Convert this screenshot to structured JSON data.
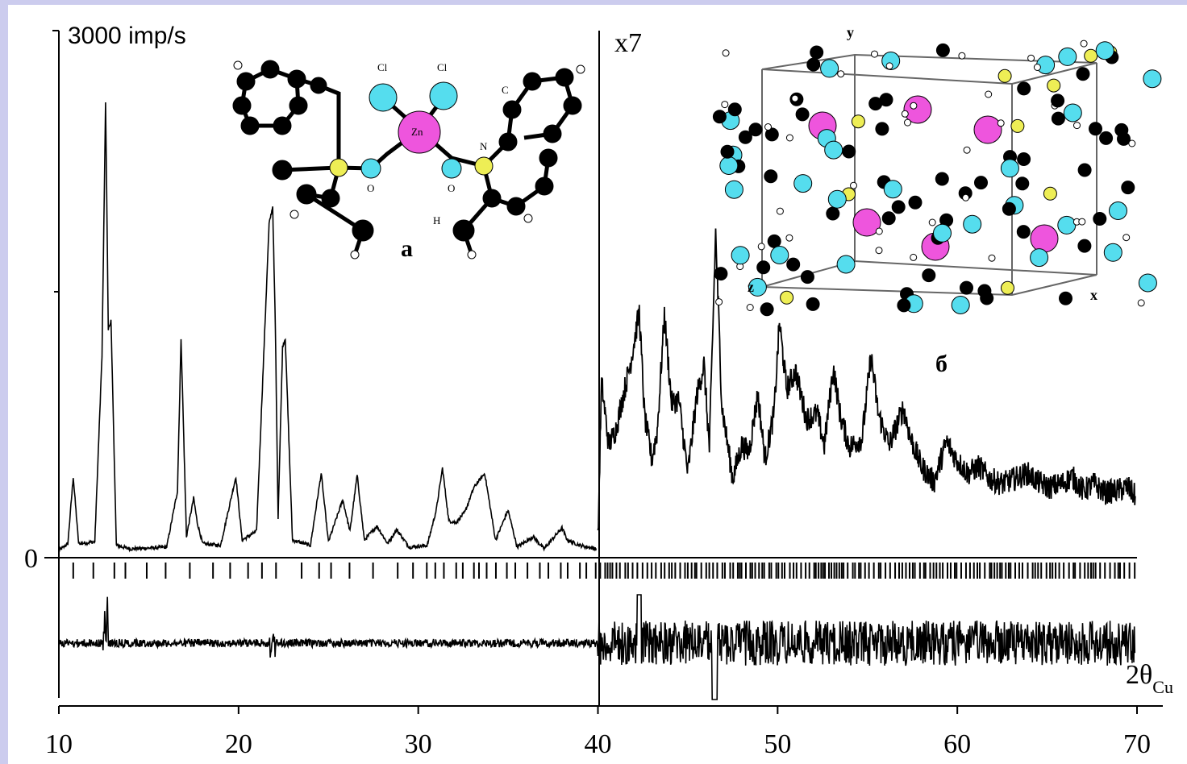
{
  "chart_data": {
    "type": "line",
    "title": "",
    "y_top_label": "3000 imp/s",
    "y_zero_label": "0",
    "scale_note": "x7",
    "scale_break_x": 40,
    "x_axis_label": "2θ",
    "x_axis_label_sub": "Cu",
    "x_ticks": [
      10,
      20,
      30,
      40,
      50,
      60,
      70
    ],
    "xlim": [
      10,
      70
    ],
    "ylim": [
      0,
      3000
    ],
    "series": [
      {
        "role": "observed",
        "x": [
          10.0,
          10.5,
          10.8,
          11.1,
          12.0,
          12.4,
          12.6,
          12.75,
          12.9,
          13.2,
          14.0,
          16.0,
          16.6,
          16.8,
          17.1,
          17.5,
          17.7,
          18.0,
          19.0,
          19.85,
          20.2,
          21.0,
          21.7,
          21.9,
          22.05,
          22.2,
          22.45,
          22.6,
          23.0,
          24.0,
          24.6,
          25.0,
          25.8,
          26.2,
          26.6,
          27.0,
          27.7,
          28.3,
          28.8,
          29.5,
          30.5,
          31.0,
          31.35,
          31.7,
          32.1,
          32.6,
          33.1,
          33.7,
          34.3,
          35.0,
          35.5,
          36.4,
          37.0,
          38.0,
          38.3,
          39.0,
          39.9
        ],
        "y": [
          40,
          80,
          460,
          80,
          90,
          1150,
          2600,
          1300,
          1350,
          70,
          50,
          60,
          380,
          1250,
          120,
          340,
          200,
          80,
          70,
          460,
          100,
          150,
          1900,
          2000,
          1300,
          230,
          1200,
          1250,
          100,
          70,
          480,
          90,
          330,
          150,
          470,
          100,
          180,
          80,
          160,
          60,
          70,
          270,
          510,
          210,
          200,
          260,
          400,
          480,
          100,
          270,
          60,
          120,
          50,
          170,
          100,
          70,
          50
        ]
      },
      {
        "role": "observed_scaled_x7",
        "x": [
          40.0,
          40.2,
          40.6,
          41.0,
          41.4,
          41.8,
          42.3,
          42.6,
          43.0,
          43.3,
          43.7,
          44.1,
          44.5,
          45.0,
          45.5,
          45.9,
          46.2,
          46.55,
          46.9,
          47.5,
          48.0,
          48.4,
          48.9,
          49.3,
          49.8,
          50.1,
          50.5,
          51.0,
          51.6,
          52.2,
          52.6,
          53.1,
          53.5,
          54.0,
          54.7,
          55.2,
          55.6,
          56.2,
          57.0,
          57.4,
          58.0,
          58.7,
          59.4,
          60.0,
          60.6,
          61.2,
          61.8,
          62.5,
          63.2,
          63.9,
          64.5,
          65.1,
          65.8,
          66.4,
          67.0,
          67.6,
          68.2,
          68.8,
          69.5,
          69.9
        ],
        "y": [
          90,
          1000,
          640,
          730,
          920,
          1100,
          1400,
          800,
          560,
          720,
          1380,
          880,
          900,
          480,
          920,
          1100,
          620,
          1850,
          860,
          450,
          640,
          600,
          930,
          560,
          820,
          1340,
          960,
          1060,
          790,
          820,
          640,
          1080,
          800,
          630,
          680,
          1150,
          820,
          640,
          850,
          680,
          520,
          430,
          660,
          550,
          480,
          520,
          450,
          420,
          450,
          480,
          430,
          400,
          420,
          460,
          380,
          420,
          370,
          380,
          400,
          350
        ]
      }
    ],
    "reflection_ticks": "hkl positions (dense markers from 10 to 70)",
    "difference_curve": "observed minus calculated (lower panel)"
  },
  "insets": {
    "a": {
      "label": "a",
      "atom_labels": [
        "Cl",
        "Cl",
        "Zn",
        "N",
        "O",
        "O",
        "C",
        "H"
      ]
    },
    "b": {
      "label": "б",
      "axis_labels": [
        "y",
        "z",
        "x"
      ]
    }
  },
  "colors": {
    "background": "#ccccee",
    "plot_bg": "#ffffff",
    "zinc": "#ee55dd",
    "chlorine_oxygen": "#55ddee",
    "nitrogen": "#eeee55",
    "carbon": "#000000",
    "hydrogen": "#ffffff"
  }
}
